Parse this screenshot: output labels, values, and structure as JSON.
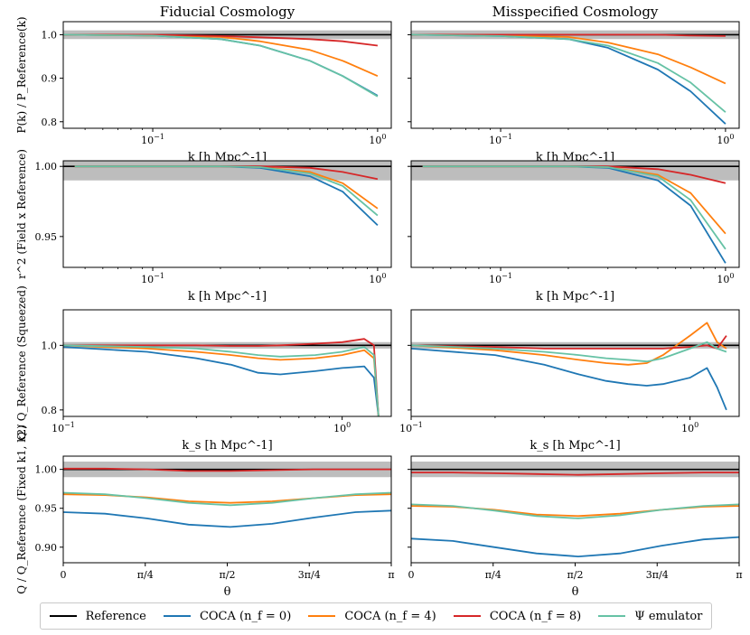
{
  "figure": {
    "col_titles": [
      "Fiducial Cosmology",
      "Misspecified Cosmology"
    ],
    "series_names": [
      "Reference",
      "COCA (n_f = 0)",
      "COCA (n_f = 4)",
      "COCA (n_f = 8)",
      "Ψ emulator"
    ],
    "colors": {
      "reference": "#000000",
      "coca0": "#1f77b4",
      "coca4": "#ff7f0e",
      "coca8": "#d62728",
      "psi": "#66c2a5",
      "band": "#bdbdbd"
    }
  },
  "legend": {
    "items": [
      {
        "label": "Reference",
        "color": "#000000"
      },
      {
        "label": "COCA (n_f = 0)",
        "color": "#1f77b4"
      },
      {
        "label": "COCA (n_f = 4)",
        "color": "#ff7f0e"
      },
      {
        "label": "COCA (n_f = 8)",
        "color": "#d62728"
      },
      {
        "label": "Ψ emulator",
        "color": "#66c2a5"
      }
    ]
  },
  "chart_data": [
    {
      "id": "pk-fiducial",
      "type": "line",
      "column": "Fiducial Cosmology",
      "ylabel": "P(k) / P_Reference(k)",
      "xlabel": "k [h Mpc^-1]",
      "xscale": "log",
      "xlim": [
        0.04,
        1.15
      ],
      "ylim": [
        0.785,
        1.03
      ],
      "yticks": [
        0.8,
        0.9,
        1.0
      ],
      "ytick_labels": [
        "0.8",
        "0.9",
        "1.0"
      ],
      "xticks": [
        0.1,
        1.0
      ],
      "xtick_labels": [
        "10^-1",
        "10^0"
      ],
      "band": [
        0.99,
        1.01
      ],
      "reference": 1.0,
      "series": [
        {
          "name": "COCA (n_f = 0)",
          "x": [
            0.04,
            0.1,
            0.2,
            0.3,
            0.5,
            0.7,
            1.0
          ],
          "y": [
            1.0,
            0.998,
            0.99,
            0.975,
            0.94,
            0.905,
            0.86
          ]
        },
        {
          "name": "COCA (n_f = 4)",
          "x": [
            0.04,
            0.1,
            0.2,
            0.3,
            0.5,
            0.7,
            1.0
          ],
          "y": [
            1.0,
            0.998,
            0.995,
            0.985,
            0.965,
            0.94,
            0.905
          ]
        },
        {
          "name": "COCA (n_f = 8)",
          "x": [
            0.04,
            0.1,
            0.2,
            0.3,
            0.5,
            0.7,
            1.0
          ],
          "y": [
            1.0,
            1.0,
            0.997,
            0.994,
            0.99,
            0.985,
            0.975
          ]
        },
        {
          "name": "Ψ emulator",
          "x": [
            0.04,
            0.1,
            0.2,
            0.3,
            0.5,
            0.7,
            1.0
          ],
          "y": [
            1.0,
            0.998,
            0.99,
            0.975,
            0.94,
            0.905,
            0.858
          ]
        }
      ]
    },
    {
      "id": "pk-misspecified",
      "type": "line",
      "column": "Misspecified Cosmology",
      "ylabel": "",
      "xlabel": "k [h Mpc^-1]",
      "xscale": "log",
      "xlim": [
        0.04,
        1.15
      ],
      "ylim": [
        0.785,
        1.03
      ],
      "yticks": [
        0.8,
        0.9,
        1.0
      ],
      "ytick_labels": [
        "",
        "",
        ""
      ],
      "xticks": [
        0.1,
        1.0
      ],
      "xtick_labels": [
        "10^-1",
        "10^0"
      ],
      "band": [
        0.99,
        1.01
      ],
      "reference": 1.0,
      "series": [
        {
          "name": "COCA (n_f = 0)",
          "x": [
            0.04,
            0.1,
            0.2,
            0.3,
            0.5,
            0.7,
            1.0
          ],
          "y": [
            1.0,
            0.997,
            0.99,
            0.97,
            0.92,
            0.87,
            0.795
          ]
        },
        {
          "name": "COCA (n_f = 4)",
          "x": [
            0.04,
            0.1,
            0.2,
            0.3,
            0.5,
            0.7,
            1.0
          ],
          "y": [
            1.0,
            0.998,
            0.995,
            0.982,
            0.955,
            0.925,
            0.888
          ]
        },
        {
          "name": "COCA (n_f = 8)",
          "x": [
            0.04,
            0.1,
            0.2,
            0.3,
            0.5,
            0.7,
            1.0
          ],
          "y": [
            1.0,
            1.0,
            1.0,
            1.0,
            1.0,
            0.998,
            0.997
          ]
        },
        {
          "name": "Ψ emulator",
          "x": [
            0.04,
            0.1,
            0.2,
            0.3,
            0.5,
            0.7,
            1.0
          ],
          "y": [
            1.0,
            0.997,
            0.99,
            0.975,
            0.935,
            0.89,
            0.822
          ]
        }
      ]
    },
    {
      "id": "r2-fiducial",
      "type": "line",
      "column": "Fiducial Cosmology",
      "ylabel": "r^2 (Field x Reference)",
      "xlabel": "k [h Mpc^-1]",
      "xscale": "log",
      "xlim": [
        0.04,
        1.15
      ],
      "ylim": [
        0.928,
        1.004
      ],
      "yticks": [
        0.95,
        1.0
      ],
      "ytick_labels": [
        "0.95",
        "1.00"
      ],
      "xticks": [
        0.1,
        1.0
      ],
      "xtick_labels": [
        "10^-1",
        "10^0"
      ],
      "band": [
        0.99,
        1.01
      ],
      "reference": 1.0,
      "series": [
        {
          "name": "COCA (n_f = 0)",
          "x": [
            0.045,
            0.1,
            0.2,
            0.3,
            0.5,
            0.7,
            1.0
          ],
          "y": [
            1.0,
            1.0,
            1.0,
            0.999,
            0.993,
            0.982,
            0.958
          ]
        },
        {
          "name": "COCA (n_f = 4)",
          "x": [
            0.045,
            0.1,
            0.2,
            0.3,
            0.5,
            0.7,
            1.0
          ],
          "y": [
            1.0,
            1.0,
            1.0,
            0.9995,
            0.996,
            0.988,
            0.97
          ]
        },
        {
          "name": "COCA (n_f = 8)",
          "x": [
            0.045,
            0.1,
            0.2,
            0.3,
            0.5,
            0.7,
            1.0
          ],
          "y": [
            1.0,
            1.0,
            1.0,
            1.0,
            0.999,
            0.996,
            0.991
          ]
        },
        {
          "name": "Ψ emulator",
          "x": [
            0.045,
            0.1,
            0.2,
            0.3,
            0.5,
            0.7,
            1.0
          ],
          "y": [
            1.0,
            1.0,
            1.0,
            0.9995,
            0.995,
            0.986,
            0.965
          ]
        }
      ]
    },
    {
      "id": "r2-misspecified",
      "type": "line",
      "column": "Misspecified Cosmology",
      "ylabel": "",
      "xlabel": "k [h Mpc^-1]",
      "xscale": "log",
      "xlim": [
        0.04,
        1.15
      ],
      "ylim": [
        0.928,
        1.004
      ],
      "yticks": [
        0.95,
        1.0
      ],
      "ytick_labels": [
        "",
        ""
      ],
      "xticks": [
        0.1,
        1.0
      ],
      "xtick_labels": [
        "10^-1",
        "10^0"
      ],
      "band": [
        0.99,
        1.01
      ],
      "reference": 1.0,
      "series": [
        {
          "name": "COCA (n_f = 0)",
          "x": [
            0.045,
            0.1,
            0.2,
            0.3,
            0.5,
            0.7,
            1.0
          ],
          "y": [
            1.0,
            1.0,
            1.0,
            0.999,
            0.99,
            0.972,
            0.931
          ]
        },
        {
          "name": "COCA (n_f = 4)",
          "x": [
            0.045,
            0.1,
            0.2,
            0.3,
            0.5,
            0.7,
            1.0
          ],
          "y": [
            1.0,
            1.0,
            1.0,
            0.9995,
            0.994,
            0.981,
            0.952
          ]
        },
        {
          "name": "COCA (n_f = 8)",
          "x": [
            0.045,
            0.1,
            0.2,
            0.3,
            0.5,
            0.7,
            1.0
          ],
          "y": [
            1.0,
            1.0,
            1.0,
            1.0,
            0.998,
            0.994,
            0.988
          ]
        },
        {
          "name": "Ψ emulator",
          "x": [
            0.045,
            0.1,
            0.2,
            0.3,
            0.5,
            0.7,
            1.0
          ],
          "y": [
            1.0,
            1.0,
            1.0,
            0.9995,
            0.993,
            0.976,
            0.941
          ]
        }
      ]
    },
    {
      "id": "q-squeezed-fiducial",
      "type": "line",
      "column": "Fiducial Cosmology",
      "ylabel": "Q / Q_Reference (Squeezed)",
      "xlabel": "k_s [h Mpc^-1]",
      "xscale": "log",
      "xlim": [
        0.1,
        1.5
      ],
      "ylim": [
        0.78,
        1.11
      ],
      "yticks": [
        0.8,
        1.0
      ],
      "ytick_labels": [
        "0.8",
        "1.0"
      ],
      "xticks": [
        0.1,
        1.0
      ],
      "xtick_labels": [
        "10^-1",
        "10^0"
      ],
      "band": [
        0.99,
        1.01
      ],
      "reference": 1.0,
      "series": [
        {
          "name": "COCA (n_f = 0)",
          "x": [
            0.1,
            0.2,
            0.3,
            0.4,
            0.5,
            0.6,
            0.8,
            1.0,
            1.2,
            1.3,
            1.35
          ],
          "y": [
            0.995,
            0.98,
            0.96,
            0.94,
            0.915,
            0.91,
            0.92,
            0.93,
            0.935,
            0.9,
            0.78
          ]
        },
        {
          "name": "COCA (n_f = 4)",
          "x": [
            0.1,
            0.2,
            0.3,
            0.4,
            0.5,
            0.6,
            0.8,
            1.0,
            1.2,
            1.3,
            1.35
          ],
          "y": [
            1.0,
            0.99,
            0.98,
            0.97,
            0.96,
            0.955,
            0.96,
            0.97,
            0.985,
            0.96,
            0.78
          ]
        },
        {
          "name": "COCA (n_f = 8)",
          "x": [
            0.1,
            0.2,
            0.3,
            0.4,
            0.5,
            0.6,
            0.8,
            1.0,
            1.2,
            1.3,
            1.35
          ],
          "y": [
            1.0,
            1.0,
            1.0,
            0.998,
            0.998,
            1.0,
            1.005,
            1.01,
            1.02,
            1.0,
            0.78
          ]
        },
        {
          "name": "Ψ emulator",
          "x": [
            0.1,
            0.2,
            0.3,
            0.4,
            0.5,
            0.6,
            0.8,
            1.0,
            1.2,
            1.3,
            1.35
          ],
          "y": [
            1.0,
            0.995,
            0.99,
            0.98,
            0.97,
            0.965,
            0.97,
            0.98,
            0.995,
            0.97,
            0.78
          ]
        }
      ]
    },
    {
      "id": "q-squeezed-misspecified",
      "type": "line",
      "column": "Misspecified Cosmology",
      "ylabel": "",
      "xlabel": "k_s [h Mpc^-1]",
      "xscale": "log",
      "xlim": [
        0.1,
        1.5
      ],
      "ylim": [
        0.78,
        1.11
      ],
      "yticks": [
        0.8,
        1.0
      ],
      "ytick_labels": [
        "",
        ""
      ],
      "xticks": [
        0.1,
        1.0
      ],
      "xtick_labels": [
        "10^-1",
        "10^0"
      ],
      "band": [
        0.99,
        1.01
      ],
      "reference": 1.0,
      "series": [
        {
          "name": "COCA (n_f = 0)",
          "x": [
            0.1,
            0.2,
            0.3,
            0.4,
            0.5,
            0.6,
            0.7,
            0.8,
            1.0,
            1.15,
            1.25,
            1.35
          ],
          "y": [
            0.99,
            0.97,
            0.94,
            0.91,
            0.89,
            0.88,
            0.875,
            0.88,
            0.9,
            0.93,
            0.87,
            0.8
          ]
        },
        {
          "name": "COCA (n_f = 4)",
          "x": [
            0.1,
            0.2,
            0.3,
            0.4,
            0.5,
            0.6,
            0.7,
            0.8,
            1.0,
            1.15,
            1.25,
            1.35
          ],
          "y": [
            1.0,
            0.985,
            0.97,
            0.955,
            0.945,
            0.94,
            0.945,
            0.97,
            1.03,
            1.07,
            1.01,
            0.99
          ]
        },
        {
          "name": "COCA (n_f = 8)",
          "x": [
            0.1,
            0.2,
            0.3,
            0.4,
            0.5,
            0.6,
            0.7,
            0.8,
            1.0,
            1.15,
            1.25,
            1.35
          ],
          "y": [
            1.0,
            0.995,
            0.99,
            0.99,
            0.99,
            0.99,
            0.99,
            0.99,
            0.995,
            1.0,
            0.99,
            1.03
          ]
        },
        {
          "name": "Ψ emulator",
          "x": [
            0.1,
            0.2,
            0.3,
            0.4,
            0.5,
            0.6,
            0.7,
            0.8,
            1.0,
            1.15,
            1.25,
            1.35
          ],
          "y": [
            1.0,
            0.99,
            0.98,
            0.97,
            0.96,
            0.955,
            0.95,
            0.96,
            0.99,
            1.01,
            0.99,
            0.98
          ]
        }
      ]
    },
    {
      "id": "q-fixed-fiducial",
      "type": "line",
      "column": "Fiducial Cosmology",
      "ylabel": "Q / Q_Reference (Fixed k1, k2)",
      "xlabel": "θ",
      "xscale": "linear",
      "xlim": [
        0,
        3.14159
      ],
      "ylim": [
        0.88,
        1.017
      ],
      "yticks": [
        0.9,
        0.95,
        1.0
      ],
      "ytick_labels": [
        "0.90",
        "0.95",
        "1.00"
      ],
      "xticks": [
        0,
        0.7854,
        1.5708,
        2.3562,
        3.14159
      ],
      "xtick_labels": [
        "0",
        "π/4",
        "π/2",
        "3π/4",
        "π"
      ],
      "band": [
        0.99,
        1.01
      ],
      "reference": 1.0,
      "series": [
        {
          "name": "COCA (n_f = 0)",
          "x": [
            0,
            0.4,
            0.8,
            1.2,
            1.6,
            2.0,
            2.4,
            2.8,
            3.14
          ],
          "y": [
            0.945,
            0.943,
            0.937,
            0.929,
            0.926,
            0.93,
            0.938,
            0.945,
            0.947
          ]
        },
        {
          "name": "COCA (n_f = 4)",
          "x": [
            0,
            0.4,
            0.8,
            1.2,
            1.6,
            2.0,
            2.4,
            2.8,
            3.14
          ],
          "y": [
            0.968,
            0.967,
            0.964,
            0.959,
            0.957,
            0.959,
            0.963,
            0.967,
            0.968
          ]
        },
        {
          "name": "COCA (n_f = 8)",
          "x": [
            0,
            0.4,
            0.8,
            1.2,
            1.6,
            2.0,
            2.4,
            2.8,
            3.14
          ],
          "y": [
            1.001,
            1.001,
            1.0,
            0.998,
            0.998,
            0.999,
            1.0,
            1.0,
            1.0
          ]
        },
        {
          "name": "Ψ emulator",
          "x": [
            0,
            0.4,
            0.8,
            1.2,
            1.6,
            2.0,
            2.4,
            2.8,
            3.14
          ],
          "y": [
            0.97,
            0.968,
            0.963,
            0.957,
            0.954,
            0.957,
            0.963,
            0.968,
            0.97
          ]
        }
      ]
    },
    {
      "id": "q-fixed-misspecified",
      "type": "line",
      "column": "Misspecified Cosmology",
      "ylabel": "",
      "xlabel": "θ",
      "xscale": "linear",
      "xlim": [
        0,
        3.14159
      ],
      "ylim": [
        0.88,
        1.017
      ],
      "yticks": [
        0.9,
        0.95,
        1.0
      ],
      "ytick_labels": [
        "",
        "",
        ""
      ],
      "xticks": [
        0,
        0.7854,
        1.5708,
        2.3562,
        3.14159
      ],
      "xtick_labels": [
        "0",
        "π/4",
        "π/2",
        "3π/4",
        "π"
      ],
      "band": [
        0.99,
        1.01
      ],
      "reference": 1.0,
      "series": [
        {
          "name": "COCA (n_f = 0)",
          "x": [
            0,
            0.4,
            0.8,
            1.2,
            1.6,
            2.0,
            2.4,
            2.8,
            3.14
          ],
          "y": [
            0.911,
            0.908,
            0.9,
            0.892,
            0.888,
            0.892,
            0.902,
            0.91,
            0.913
          ]
        },
        {
          "name": "COCA (n_f = 4)",
          "x": [
            0,
            0.4,
            0.8,
            1.2,
            1.6,
            2.0,
            2.4,
            2.8,
            3.14
          ],
          "y": [
            0.953,
            0.952,
            0.948,
            0.942,
            0.94,
            0.943,
            0.948,
            0.952,
            0.953
          ]
        },
        {
          "name": "COCA (n_f = 8)",
          "x": [
            0,
            0.4,
            0.8,
            1.2,
            1.6,
            2.0,
            2.4,
            2.8,
            3.14
          ],
          "y": [
            0.996,
            0.996,
            0.995,
            0.994,
            0.993,
            0.994,
            0.995,
            0.996,
            0.996
          ]
        },
        {
          "name": "Ψ emulator",
          "x": [
            0,
            0.4,
            0.8,
            1.2,
            1.6,
            2.0,
            2.4,
            2.8,
            3.14
          ],
          "y": [
            0.955,
            0.953,
            0.947,
            0.94,
            0.937,
            0.941,
            0.948,
            0.953,
            0.955
          ]
        }
      ]
    }
  ]
}
